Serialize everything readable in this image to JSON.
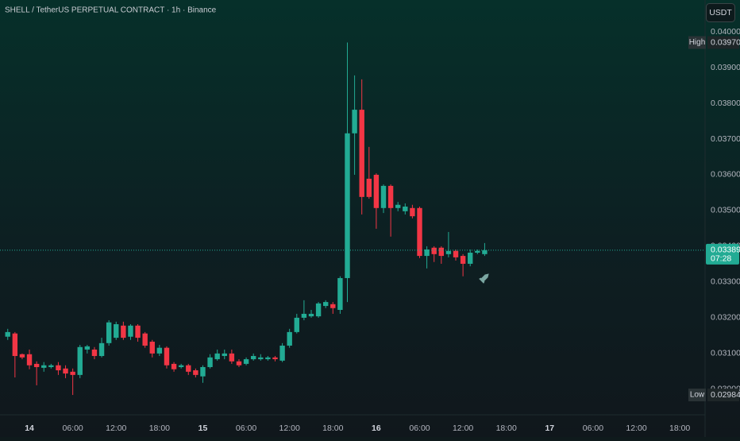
{
  "chart_data": {
    "type": "candlestick",
    "title": "SHELL / TetherUS PERPETUAL CONTRACT · 1h · Binance",
    "currency_button": "USDT",
    "up_color": "#22ab94",
    "down_color": "#f23645",
    "grid": false,
    "x": [
      -3,
      -2,
      -1,
      0,
      1,
      2,
      3,
      4,
      5,
      6,
      7,
      8,
      9,
      10,
      11,
      12,
      13,
      14,
      15,
      16,
      17,
      18,
      19,
      20,
      21,
      22,
      23,
      24,
      25,
      26,
      27,
      28,
      29,
      30,
      31,
      32,
      33,
      34,
      35,
      36,
      37,
      38,
      39,
      40,
      41,
      42,
      43,
      44,
      45,
      46,
      47,
      48,
      49,
      50,
      51,
      52,
      53,
      54,
      55,
      56,
      57,
      58,
      59,
      60,
      61,
      62,
      63
    ],
    "open": [
      0.03147,
      0.03156,
      0.03098,
      0.03098,
      0.03071,
      0.0306,
      0.03062,
      0.03067,
      0.03058,
      0.03049,
      0.0304,
      0.03111,
      0.03111,
      0.03093,
      0.03129,
      0.03144,
      0.03178,
      0.03147,
      0.03178,
      0.03156,
      0.03133,
      0.031,
      0.03116,
      0.03071,
      0.03062,
      0.03067,
      0.03053,
      0.03036,
      0.03062,
      0.03084,
      0.03093,
      0.031,
      0.03078,
      0.03071,
      0.03084,
      0.03084,
      0.03084,
      0.03089,
      0.0308,
      0.03122,
      0.0316,
      0.032,
      0.03204,
      0.03204,
      0.03233,
      0.03238,
      0.03222,
      0.03311,
      0.03716,
      0.03782,
      0.03589,
      0.036,
      0.03507,
      0.03569,
      0.03507,
      0.03498,
      0.03507,
      0.03507,
      0.03373,
      0.03396,
      0.03396,
      0.03378,
      0.03387,
      0.03373,
      0.03351,
      0.03382,
      0.03378
    ],
    "high": [
      0.03169,
      0.0316,
      0.031,
      0.03111,
      0.03078,
      0.03076,
      0.03071,
      0.03076,
      0.03067,
      0.03058,
      0.03124,
      0.03124,
      0.03118,
      0.03144,
      0.03193,
      0.03189,
      0.03189,
      0.03182,
      0.03182,
      0.0316,
      0.03138,
      0.03124,
      0.0312,
      0.03076,
      0.03071,
      0.03071,
      0.03058,
      0.03067,
      0.03098,
      0.03111,
      0.03111,
      0.03111,
      0.03084,
      0.03089,
      0.031,
      0.03098,
      0.03093,
      0.03093,
      0.03129,
      0.03169,
      0.03211,
      0.03249,
      0.03222,
      0.03244,
      0.03249,
      0.03244,
      0.03316,
      0.0397,
      0.03878,
      0.03867,
      0.03678,
      0.03604,
      0.03573,
      0.03573,
      0.03524,
      0.0352,
      0.03516,
      0.03511,
      0.034,
      0.034,
      0.034,
      0.0344,
      0.03391,
      0.03378,
      0.03391,
      0.03391,
      0.03409
    ],
    "low": [
      0.03138,
      0.03033,
      0.03084,
      0.03056,
      0.03011,
      0.03049,
      0.03058,
      0.0304,
      0.03031,
      0.02984,
      0.03031,
      0.031,
      0.03084,
      0.03089,
      0.03122,
      0.03138,
      0.03138,
      0.03138,
      0.03133,
      0.03116,
      0.03089,
      0.03093,
      0.03058,
      0.03049,
      0.03058,
      0.0304,
      0.03033,
      0.03018,
      0.03058,
      0.0308,
      0.03084,
      0.03071,
      0.03062,
      0.03067,
      0.0308,
      0.0308,
      0.0308,
      0.03078,
      0.03076,
      0.03116,
      0.03156,
      0.03193,
      0.032,
      0.032,
      0.03227,
      0.03211,
      0.03211,
      0.03244,
      0.036,
      0.03489,
      0.03533,
      0.03449,
      0.03493,
      0.03427,
      0.03498,
      0.03489,
      0.03478,
      0.03367,
      0.03338,
      0.03356,
      0.03351,
      0.03369,
      0.0336,
      0.03316,
      0.03344,
      0.03378,
      0.03373
    ],
    "close": [
      0.0316,
      0.03093,
      0.03089,
      0.03067,
      0.03062,
      0.03067,
      0.03067,
      0.03053,
      0.03044,
      0.0304,
      0.03118,
      0.0312,
      0.03093,
      0.03129,
      0.03187,
      0.03182,
      0.03144,
      0.03178,
      0.03144,
      0.03122,
      0.031,
      0.03116,
      0.03067,
      0.03056,
      0.03067,
      0.03049,
      0.0304,
      0.03062,
      0.03089,
      0.031,
      0.031,
      0.03078,
      0.03067,
      0.03084,
      0.03093,
      0.03089,
      0.03089,
      0.03084,
      0.03122,
      0.0316,
      0.032,
      0.03211,
      0.03211,
      0.0324,
      0.03244,
      0.03227,
      0.03311,
      0.03716,
      0.03782,
      0.03538,
      0.03538,
      0.03507,
      0.03569,
      0.03507,
      0.03516,
      0.03511,
      0.03484,
      0.03373,
      0.03391,
      0.03378,
      0.03373,
      0.03387,
      0.03369,
      0.03351,
      0.03382,
      0.03387,
      0.03389
    ],
    "xlim": [
      -4.07,
      93.5
    ],
    "xticks": [
      {
        "value": 0,
        "label": "14"
      },
      {
        "value": 6,
        "label": "06:00"
      },
      {
        "value": 12,
        "label": "12:00"
      },
      {
        "value": 18,
        "label": "18:00"
      },
      {
        "value": 24,
        "label": "15"
      },
      {
        "value": 30,
        "label": "06:00"
      },
      {
        "value": 36,
        "label": "12:00"
      },
      {
        "value": 42,
        "label": "18:00"
      },
      {
        "value": 48,
        "label": "16"
      },
      {
        "value": 54,
        "label": "06:00"
      },
      {
        "value": 60,
        "label": "12:00"
      },
      {
        "value": 66,
        "label": "18:00"
      },
      {
        "value": 72,
        "label": "17"
      },
      {
        "value": 78,
        "label": "06:00"
      },
      {
        "value": 84,
        "label": "12:00"
      },
      {
        "value": 90,
        "label": "18:00"
      }
    ],
    "ylim": [
      0.02933,
      0.04089
    ],
    "yticks": [
      {
        "value": 0.03,
        "label": "0.03000"
      },
      {
        "value": 0.031,
        "label": "0.03100"
      },
      {
        "value": 0.032,
        "label": "0.03200"
      },
      {
        "value": 0.033,
        "label": "0.03300"
      },
      {
        "value": 0.034,
        "label": "0.03400"
      },
      {
        "value": 0.035,
        "label": "0.03500"
      },
      {
        "value": 0.036,
        "label": "0.03600"
      },
      {
        "value": 0.037,
        "label": "0.03700"
      },
      {
        "value": 0.038,
        "label": "0.03800"
      },
      {
        "value": 0.039,
        "label": "0.03900"
      },
      {
        "value": 0.04,
        "label": "0.04000"
      }
    ],
    "high_marker": {
      "name": "High",
      "value": 0.0397,
      "label": "0.03970"
    },
    "low_marker": {
      "name": "Low",
      "value": 0.02984,
      "label": "0.02984"
    },
    "last_price": {
      "value": 0.03389,
      "label": "0.03389",
      "countdown": "07:28"
    }
  }
}
